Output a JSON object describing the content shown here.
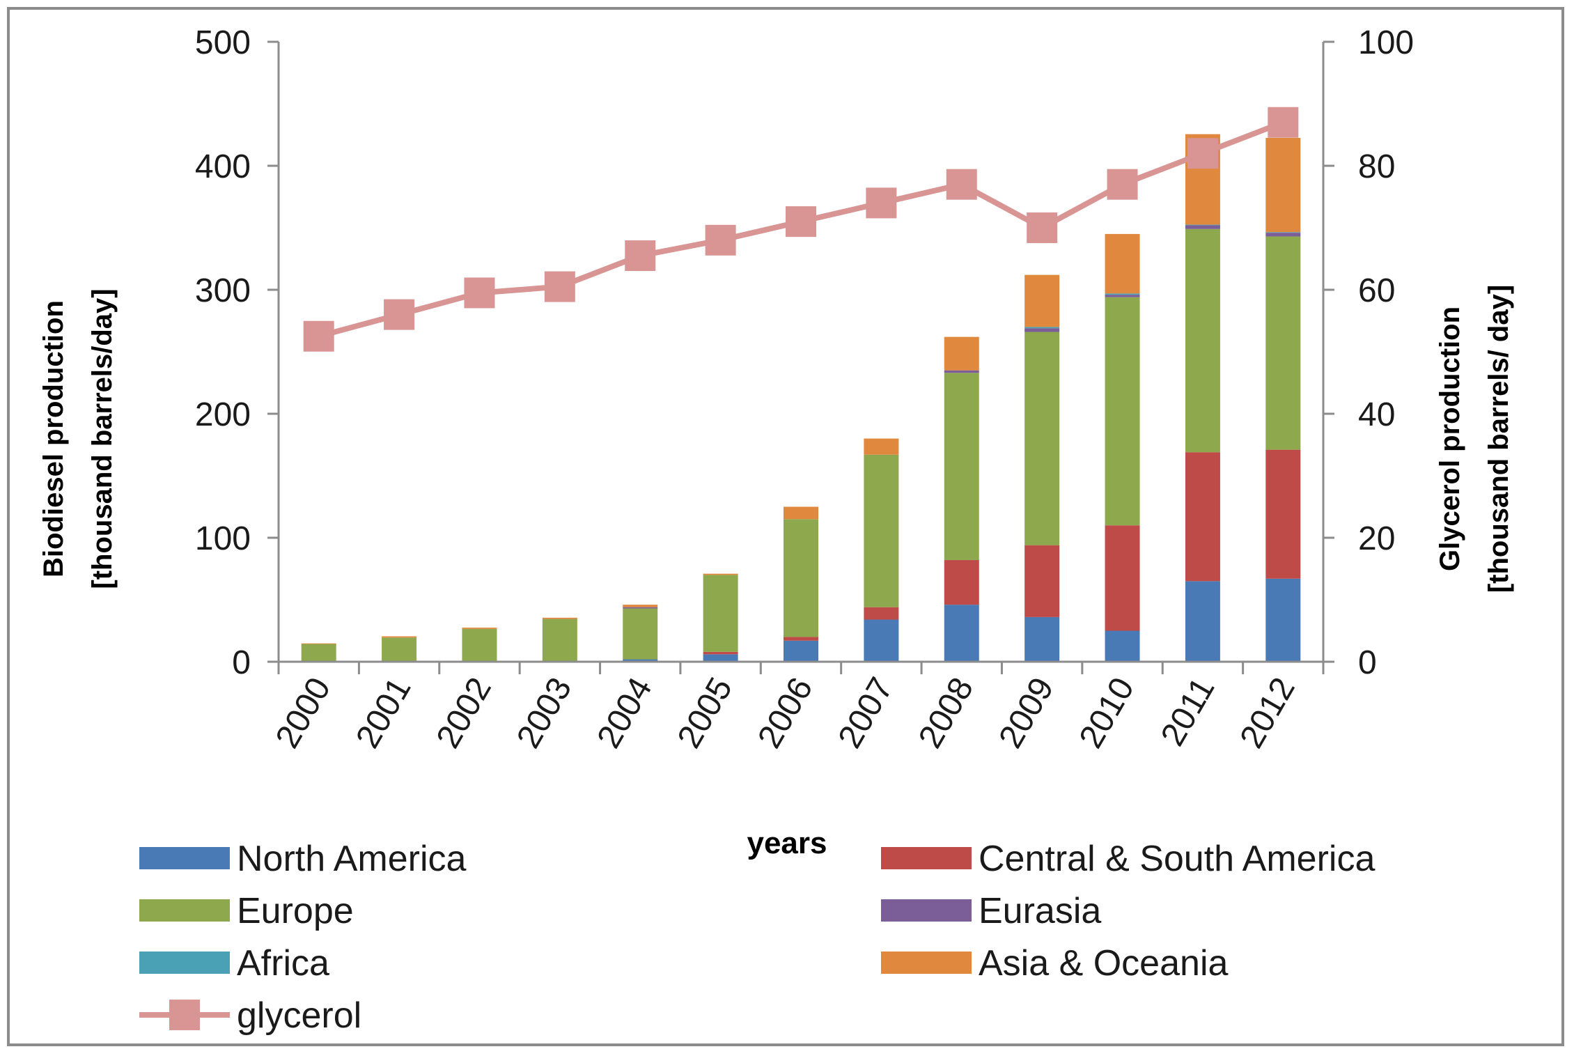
{
  "chart_data": {
    "type": "bar",
    "stacked": true,
    "categories": [
      "2000",
      "2001",
      "2002",
      "2003",
      "2004",
      "2005",
      "2006",
      "2007",
      "2008",
      "2009",
      "2010",
      "2011",
      "2012"
    ],
    "series": [
      {
        "name": "North America",
        "color": "#4a7ab5",
        "values": [
          0.3,
          0.5,
          0.5,
          0.5,
          2,
          6,
          17,
          34,
          46,
          36,
          25,
          65,
          67
        ]
      },
      {
        "name": "Central & South America",
        "color": "#be4b48",
        "values": [
          0,
          0,
          0,
          0,
          0,
          2,
          3,
          10,
          36,
          58,
          85,
          104,
          104
        ]
      },
      {
        "name": "Europe",
        "color": "#8ea84e",
        "values": [
          14,
          19,
          26,
          34,
          41,
          62,
          95,
          123,
          151,
          172,
          184,
          180,
          172
        ]
      },
      {
        "name": "Eurasia",
        "color": "#7b5e98",
        "values": [
          0,
          0,
          0,
          0,
          1,
          0,
          0,
          0,
          2,
          3,
          2,
          3,
          3
        ]
      },
      {
        "name": "Africa",
        "color": "#4aa0b5",
        "values": [
          0,
          0,
          0,
          0,
          0,
          0,
          0,
          0,
          0,
          1,
          1,
          0.5,
          0.5
        ]
      },
      {
        "name": "Asia & Oceania",
        "color": "#e0883e",
        "values": [
          0.5,
          1,
          1,
          1,
          2,
          1,
          10,
          13,
          27,
          42,
          48,
          73,
          76
        ]
      },
      {
        "name": "glycerol",
        "color": "#d99594",
        "type": "line",
        "axis": "right",
        "values": [
          52.5,
          56,
          59.5,
          60.5,
          65.5,
          68,
          71,
          74,
          77,
          70,
          77,
          82,
          87
        ]
      }
    ],
    "y_left": {
      "label_line1": "Biodiesel production",
      "label_line2": "[thousand barrels/day]",
      "range": [
        0,
        500
      ],
      "ticks": [
        "0",
        "100",
        "200",
        "300",
        "400",
        "500"
      ]
    },
    "y_right": {
      "label_line1": "Glycerol production",
      "label_line2": "[thousand barrels/ day]",
      "range": [
        0,
        100
      ],
      "ticks": [
        "0",
        "20",
        "40",
        "60",
        "80",
        "100"
      ]
    },
    "xlabel": "years",
    "legend": {
      "placement": "bottom",
      "items": [
        "North America",
        "Central & South America",
        "Europe",
        "Eurasia",
        "Africa",
        "Asia & Oceania",
        "glycerol"
      ]
    }
  }
}
